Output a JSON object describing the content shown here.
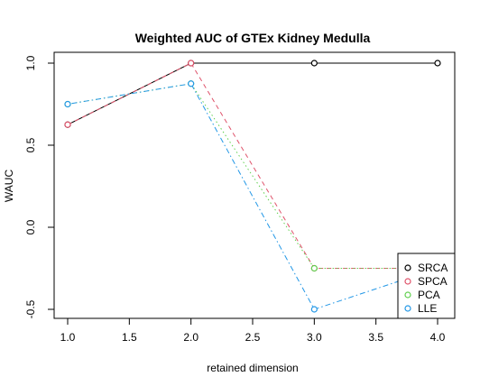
{
  "chart_data": {
    "type": "line",
    "title": "Weighted AUC of GTEx Kidney Medulla",
    "xlabel": "retained dimension",
    "ylabel": "WAUC",
    "xlim": [
      1.0,
      4.0
    ],
    "ylim": [
      -0.5,
      1.0
    ],
    "x_ticks": [
      "1.0",
      "1.5",
      "2.0",
      "2.5",
      "3.0",
      "3.5",
      "4.0"
    ],
    "y_ticks": [
      "-0.5",
      "0.0",
      "0.5",
      "1.0"
    ],
    "grid": false,
    "legend_position": "bottom-right",
    "series": [
      {
        "name": "SRCA",
        "color": "#000000",
        "dash": "solid",
        "x": [
          1,
          2,
          3,
          4
        ],
        "y": [
          0.625,
          1.0,
          1.0,
          1.0
        ]
      },
      {
        "name": "SPCA",
        "color": "#DF536B",
        "dash": "dashed",
        "x": [
          1,
          2,
          3,
          4
        ],
        "y": [
          0.625,
          1.0,
          -0.25,
          -0.25
        ]
      },
      {
        "name": "PCA",
        "color": "#61D04F",
        "dash": "dotted",
        "x": [
          1,
          2,
          3,
          4
        ],
        "y": [
          0.75,
          0.875,
          -0.25,
          -0.25
        ]
      },
      {
        "name": "LLE",
        "color": "#2297E6",
        "dash": "dotdash",
        "x": [
          1,
          2,
          3,
          4
        ],
        "y": [
          0.75,
          0.875,
          -0.5,
          -0.25
        ]
      }
    ],
    "point_marker": "open-circle"
  }
}
